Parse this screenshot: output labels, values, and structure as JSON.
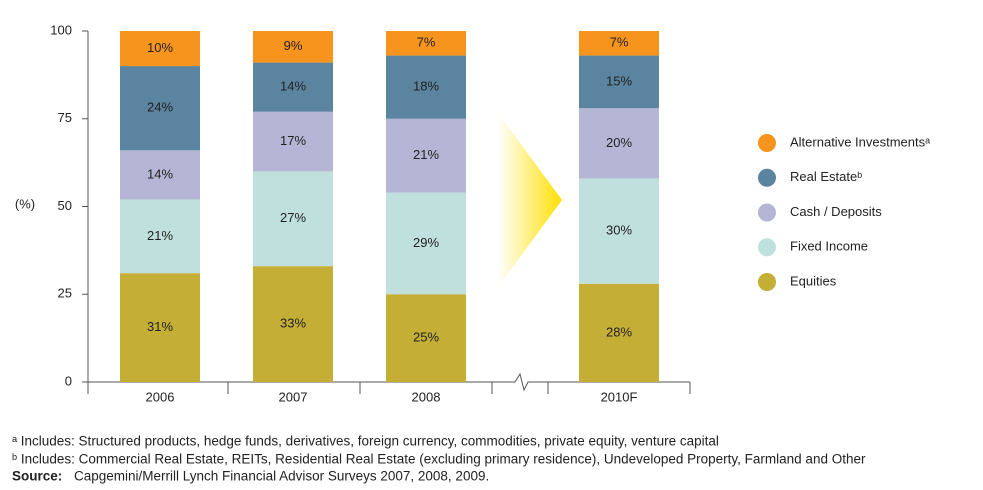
{
  "chart_data": {
    "type": "stacked_bar",
    "categories": [
      "2006",
      "2007",
      "2008",
      "2010F"
    ],
    "series": [
      {
        "name": "Equities",
        "color": "#c4ae35",
        "values": [
          31,
          33,
          25,
          28
        ],
        "value_labels": [
          "31%",
          "33%",
          "25%",
          "28%"
        ]
      },
      {
        "name": "Fixed Income",
        "color": "#bfe0dd",
        "values": [
          21,
          27,
          29,
          30
        ],
        "value_labels": [
          "21%",
          "27%",
          "29%",
          "30%"
        ]
      },
      {
        "name": "Cash / Deposits",
        "color": "#b5b6d6",
        "values": [
          14,
          17,
          21,
          20
        ],
        "value_labels": [
          "14%",
          "17%",
          "21%",
          "20%"
        ]
      },
      {
        "name": "Real Estateᵇ",
        "color": "#5a84a0",
        "values": [
          24,
          14,
          18,
          15
        ],
        "value_labels": [
          "24%",
          "14%",
          "18%",
          "15%"
        ]
      },
      {
        "name": "Alternative Investmentsᵃ",
        "color": "#f7941d",
        "values": [
          10,
          9,
          7,
          7
        ],
        "value_labels": [
          "10%",
          "9%",
          "7%",
          "7%"
        ]
      }
    ],
    "ylabel": "(%)",
    "ylim": [
      0,
      100
    ],
    "yticks": [
      0,
      25,
      50,
      75,
      100
    ],
    "grid": false,
    "footnotes": [
      "ᵃ Includes: Structured products, hedge funds, derivatives, foreign currency, commodities, private equity, venture capital",
      "ᵇ Includes: Commercial Real Estate, REITs, Residential Real Estate (excluding primary residence), Undeveloped Property, Farmland and Other"
    ],
    "source_label": "Source:",
    "source": "Capgemini/Merrill Lynch Financial Advisor Surveys 2007, 2008, 2009."
  }
}
